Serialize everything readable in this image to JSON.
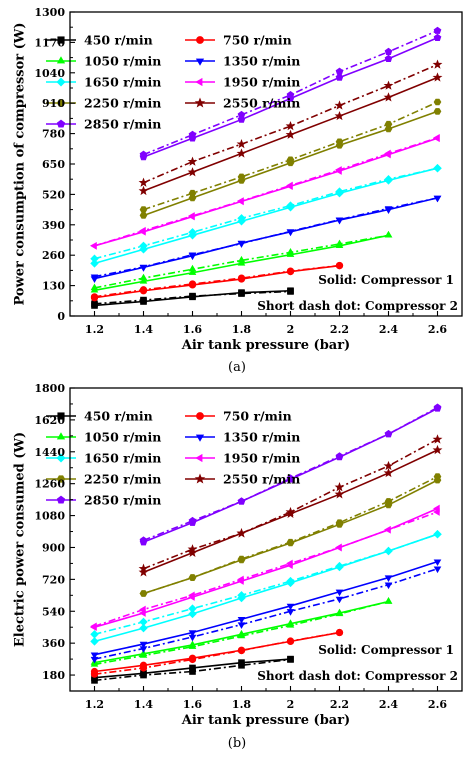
{
  "figure": {
    "panels": [
      {
        "label": "(a)",
        "ylabel": "Power consumption of compressor (W)",
        "xlabel": "Air tank pressure (bar)",
        "annotations": [
          "Solid: Compressor 1",
          "Short dash dot: Compressor 2"
        ]
      },
      {
        "label": "(b)",
        "ylabel": "Electric power consumed (W)",
        "xlabel": "Air tank pressure (bar)",
        "annotations": [
          "Solid: Compressor 1",
          "Short dash dot: Compressor 2"
        ]
      }
    ]
  },
  "chart_data": [
    {
      "type": "line",
      "xlabel": "Air tank pressure (bar)",
      "ylabel": "Power consumption of compressor (W)",
      "xlim": [
        1.1,
        2.7
      ],
      "ylim": [
        0,
        1300
      ],
      "xticks": [
        1.2,
        1.4,
        1.6,
        1.8,
        2.0,
        2.2,
        2.4,
        2.6
      ],
      "yticks": [
        0,
        130,
        260,
        390,
        520,
        650,
        780,
        910,
        1040,
        1170,
        1300
      ],
      "grid": false,
      "legend_position": "top-left",
      "series": [
        {
          "name": "450 r/min",
          "color": "#000000",
          "marker": "square",
          "x": [
            1.2,
            1.4,
            1.6,
            1.8,
            2.0
          ],
          "compressor1": [
            45,
            62,
            82,
            100,
            108
          ],
          "compressor2": [
            52,
            68,
            85,
            96,
            105
          ]
        },
        {
          "name": "750 r/min",
          "color": "#ff0000",
          "marker": "circle",
          "x": [
            1.2,
            1.4,
            1.6,
            1.8,
            2.0,
            2.2
          ],
          "compressor1": [
            78,
            108,
            133,
            158,
            190,
            215
          ],
          "compressor2": [
            82,
            112,
            137,
            162,
            192,
            216
          ]
        },
        {
          "name": "1050 r/min",
          "color": "#00ff00",
          "marker": "triangle-up",
          "x": [
            1.2,
            1.4,
            1.6,
            1.8,
            2.0,
            2.2,
            2.4
          ],
          "compressor1": [
            110,
            148,
            185,
            225,
            262,
            300,
            345
          ],
          "compressor2": [
            120,
            162,
            200,
            238,
            272,
            308,
            345
          ]
        },
        {
          "name": "1350 r/min",
          "color": "#0000ff",
          "marker": "triangle-down",
          "x": [
            1.2,
            1.4,
            1.6,
            1.8,
            2.0,
            2.2,
            2.4,
            2.6
          ],
          "compressor1": [
            160,
            208,
            258,
            312,
            360,
            410,
            455,
            505
          ],
          "compressor2": [
            168,
            210,
            262,
            310,
            362,
            412,
            460,
            505
          ]
        },
        {
          "name": "1650 r/min",
          "color": "#00ffff",
          "marker": "diamond",
          "x": [
            1.2,
            1.4,
            1.6,
            1.8,
            2.0,
            2.2,
            2.4,
            2.6
          ],
          "compressor1": [
            225,
            285,
            345,
            405,
            465,
            525,
            580,
            632
          ],
          "compressor2": [
            245,
            300,
            358,
            418,
            472,
            532,
            585,
            632
          ]
        },
        {
          "name": "1950 r/min",
          "color": "#ff00ff",
          "marker": "triangle-left",
          "x": [
            1.2,
            1.4,
            1.6,
            1.8,
            2.0,
            2.2,
            2.4,
            2.6
          ],
          "compressor1": [
            300,
            360,
            425,
            490,
            555,
            620,
            690,
            760
          ],
          "compressor2": [
            300,
            365,
            428,
            492,
            558,
            625,
            695,
            762
          ]
        },
        {
          "name": "2250 r/min",
          "color": "#808000",
          "marker": "hexagon",
          "x": [
            1.4,
            1.6,
            1.8,
            2.0,
            2.2,
            2.4,
            2.6
          ],
          "compressor1": [
            430,
            505,
            580,
            655,
            730,
            800,
            875
          ],
          "compressor2": [
            455,
            525,
            595,
            668,
            745,
            820,
            915
          ]
        },
        {
          "name": "2550 r/min",
          "color": "#800000",
          "marker": "star",
          "x": [
            1.4,
            1.6,
            1.8,
            2.0,
            2.2,
            2.4,
            2.6
          ],
          "compressor1": [
            535,
            615,
            695,
            775,
            855,
            935,
            1020
          ],
          "compressor2": [
            570,
            660,
            735,
            812,
            900,
            985,
            1075
          ]
        },
        {
          "name": "2850 r/min",
          "color": "#8000ff",
          "marker": "pentagon",
          "x": [
            1.4,
            1.6,
            1.8,
            2.0,
            2.2,
            2.4,
            2.6
          ],
          "compressor1": [
            680,
            760,
            840,
            930,
            1020,
            1100,
            1190
          ],
          "compressor2": [
            690,
            775,
            860,
            945,
            1045,
            1130,
            1220
          ]
        }
      ]
    },
    {
      "type": "line",
      "xlabel": "Air tank pressure (bar)",
      "ylabel": "Electric power consumed (W)",
      "xlim": [
        1.1,
        2.7
      ],
      "ylim": [
        90,
        1800
      ],
      "xticks": [
        1.2,
        1.4,
        1.6,
        1.8,
        2.0,
        2.2,
        2.4,
        2.6
      ],
      "yticks": [
        180,
        360,
        540,
        720,
        900,
        1080,
        1260,
        1440,
        1620,
        1800
      ],
      "grid": false,
      "legend_position": "top-left",
      "series": [
        {
          "name": "450 r/min",
          "color": "#000000",
          "marker": "square",
          "x": [
            1.2,
            1.4,
            1.6,
            1.8,
            2.0
          ],
          "compressor1": [
            165,
            190,
            220,
            250,
            270
          ],
          "compressor2": [
            150,
            180,
            200,
            235,
            268
          ]
        },
        {
          "name": "750 r/min",
          "color": "#ff0000",
          "marker": "circle",
          "x": [
            1.2,
            1.4,
            1.6,
            1.8,
            2.0,
            2.2
          ],
          "compressor1": [
            200,
            235,
            275,
            320,
            370,
            420
          ],
          "compressor2": [
            185,
            220,
            268,
            318,
            372,
            420
          ]
        },
        {
          "name": "1050 r/min",
          "color": "#00ff00",
          "marker": "triangle-up",
          "x": [
            1.2,
            1.4,
            1.6,
            1.8,
            2.0,
            2.2,
            2.4
          ],
          "compressor1": [
            250,
            300,
            350,
            410,
            470,
            530,
            595
          ],
          "compressor2": [
            240,
            290,
            340,
            400,
            460,
            525,
            595
          ]
        },
        {
          "name": "1350 r/min",
          "color": "#0000ff",
          "marker": "triangle-down",
          "x": [
            1.2,
            1.4,
            1.6,
            1.8,
            2.0,
            2.2,
            2.4,
            2.6
          ],
          "compressor1": [
            295,
            355,
            420,
            495,
            570,
            650,
            730,
            820
          ],
          "compressor2": [
            270,
            330,
            395,
            465,
            540,
            610,
            690,
            780
          ]
        },
        {
          "name": "1650 r/min",
          "color": "#00ffff",
          "marker": "diamond",
          "x": [
            1.2,
            1.4,
            1.6,
            1.8,
            2.0,
            2.2,
            2.4,
            2.6
          ],
          "compressor1": [
            370,
            445,
            525,
            615,
            700,
            790,
            880,
            975
          ],
          "compressor2": [
            410,
            480,
            555,
            630,
            710,
            795,
            880,
            975
          ]
        },
        {
          "name": "1950 r/min",
          "color": "#ff00ff",
          "marker": "triangle-left",
          "x": [
            1.2,
            1.4,
            1.6,
            1.8,
            2.0,
            2.2,
            2.4,
            2.6
          ],
          "compressor1": [
            450,
            530,
            620,
            710,
            800,
            900,
            1000,
            1120
          ],
          "compressor2": [
            455,
            550,
            630,
            720,
            810,
            900,
            1000,
            1100
          ]
        },
        {
          "name": "2250 r/min",
          "color": "#808000",
          "marker": "hexagon",
          "x": [
            1.4,
            1.6,
            1.8,
            2.0,
            2.2,
            2.4,
            2.6
          ],
          "compressor1": [
            640,
            730,
            830,
            925,
            1030,
            1140,
            1280
          ],
          "compressor2": [
            640,
            730,
            835,
            930,
            1040,
            1160,
            1300
          ]
        },
        {
          "name": "2550 r/min",
          "color": "#800000",
          "marker": "star",
          "x": [
            1.4,
            1.6,
            1.8,
            2.0,
            2.2,
            2.4,
            2.6
          ],
          "compressor1": [
            760,
            870,
            980,
            1090,
            1200,
            1320,
            1450
          ],
          "compressor2": [
            780,
            890,
            980,
            1100,
            1240,
            1360,
            1510
          ]
        },
        {
          "name": "2850 r/min",
          "color": "#8000ff",
          "marker": "pentagon",
          "x": [
            1.4,
            1.6,
            1.8,
            2.0,
            2.2,
            2.4,
            2.6
          ],
          "compressor1": [
            930,
            1040,
            1160,
            1285,
            1410,
            1540,
            1685
          ],
          "compressor2": [
            940,
            1050,
            1160,
            1290,
            1415,
            1540,
            1690
          ]
        }
      ]
    }
  ]
}
